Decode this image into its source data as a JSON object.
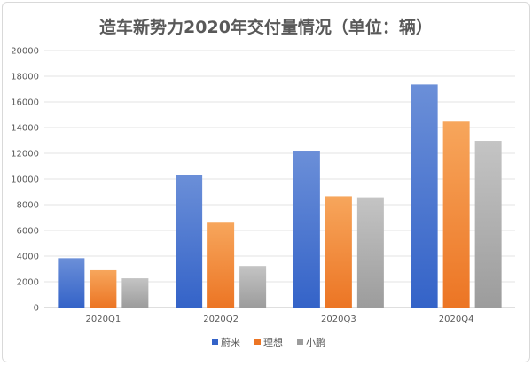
{
  "chart_data": {
    "type": "bar",
    "title": "造车新势力2020年交付量情况（单位：辆）",
    "categories": [
      "2020Q1",
      "2020Q2",
      "2020Q3",
      "2020Q4"
    ],
    "series": [
      {
        "name": "蔚来",
        "values": [
          3838,
          10331,
          12206,
          17353
        ]
      },
      {
        "name": "理想",
        "values": [
          2900,
          6604,
          8660,
          14464
        ]
      },
      {
        "name": "小鹏",
        "values": [
          2271,
          3228,
          8578,
          12964
        ]
      }
    ],
    "yticks": [
      "0",
      "2000",
      "4000",
      "6000",
      "8000",
      "10000",
      "12000",
      "14000",
      "16000",
      "18000",
      "20000"
    ],
    "ylim": [
      0,
      20000
    ],
    "xlabel": "",
    "ylabel": "",
    "grid": true,
    "legend": "bottom-center",
    "colors": {
      "蔚来": [
        "#6b8fd8",
        "#3463c8"
      ],
      "理想": [
        "#f7a65c",
        "#ec7524"
      ],
      "小鹏": [
        "#c4c4c4",
        "#9c9c9c"
      ]
    }
  }
}
